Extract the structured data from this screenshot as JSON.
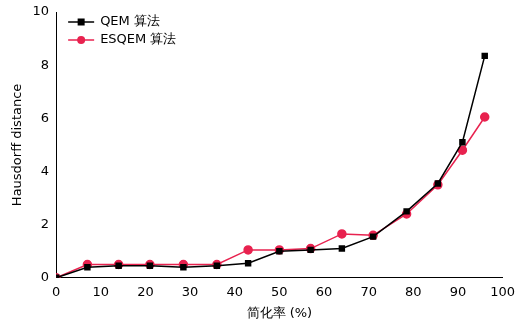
{
  "chart_data": {
    "type": "line",
    "x_label": "简化率 (%)",
    "y_label": "Hausdorff distance",
    "x": [
      0,
      7,
      14,
      21,
      28.5,
      36,
      43,
      50,
      57,
      64,
      71,
      78.5,
      85.5,
      91,
      96
    ],
    "series": [
      {
        "name": "QEM 算法",
        "color": "#000000",
        "marker": "square",
        "values": [
          0,
          0.4,
          0.45,
          0.45,
          0.4,
          0.45,
          0.55,
          1.0,
          1.05,
          1.1,
          1.55,
          2.5,
          3.55,
          5.1,
          8.35
        ]
      },
      {
        "name": "ESQEM 算法",
        "color": "#e8224f",
        "marker": "circle",
        "values": [
          0,
          0.5,
          0.5,
          0.5,
          0.5,
          0.5,
          1.05,
          1.05,
          1.1,
          1.65,
          1.6,
          2.4,
          3.5,
          4.8,
          6.05
        ]
      }
    ],
    "xlim": [
      0,
      100
    ],
    "xticks": [
      0,
      10,
      20,
      30,
      40,
      50,
      60,
      70,
      80,
      90,
      100
    ],
    "ylim": [
      0,
      10
    ],
    "yticks": [
      0,
      2,
      4,
      6,
      8,
      10
    ],
    "grid": false,
    "legend": "upper left"
  }
}
